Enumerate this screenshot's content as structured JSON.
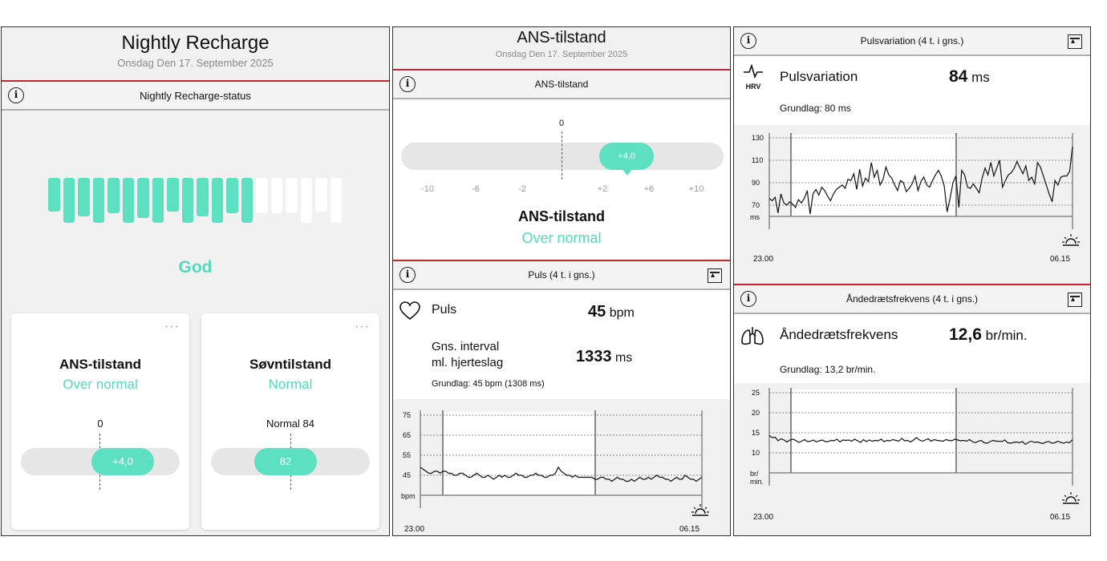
{
  "panel1": {
    "title": "Nightly Recharge",
    "date": "Onsdag Den 17. September 2025",
    "section_title": "Nightly Recharge-status",
    "status_bars_total": 20,
    "status_bars_filled": 14,
    "status_label": "God",
    "ans_card": {
      "title": "ANS-tilstand",
      "status": "Over normal",
      "ref_label": "0",
      "value": "+4,0",
      "more": "···"
    },
    "sleep_card": {
      "title": "Søvntilstand",
      "status": "Normal",
      "ref_label": "Normal 84",
      "value": "82",
      "more": "···"
    }
  },
  "panel2": {
    "title": "ANS-tilstand",
    "date": "Onsdag Den 17. September 2025",
    "section_title": "ANS-tilstand",
    "scale_zero": "0",
    "scale_ticks": [
      "-10",
      "-6",
      "-2",
      "+2",
      "+6",
      "+10"
    ],
    "value": "+4,0",
    "value_numeric": 4.0,
    "state_label": "ANS-tilstand",
    "state_value": "Over normal",
    "puls_section_title": "Puls (4 t. i gns.)",
    "puls_label": "Puls",
    "puls_value": "45",
    "puls_unit": "bpm",
    "interval_label_1": "Gns. interval",
    "interval_label_2": "ml. hjerteslag",
    "interval_value": "1333",
    "interval_unit": "ms",
    "baseline": "Grundlag: 45 bpm (1308 ms)",
    "time_start": "23.00",
    "time_end": "06.15"
  },
  "panel3": {
    "hrv_section_title": "Pulsvariation (4 t. i gns.)",
    "hrv_icon_text": "HRV",
    "hrv_label": "Pulsvariation",
    "hrv_value": "84",
    "hrv_unit": "ms",
    "hrv_baseline": "Grundlag: 80 ms",
    "resp_section_title": "Åndedrætsfrekvens (4 t. i gns.)",
    "resp_label": "Åndedrætsfrekvens",
    "resp_value": "12,6",
    "resp_unit": "br/min.",
    "resp_baseline": "Grundlag: 13,2 br/min.",
    "time_start": "23.00",
    "time_end": "06.15"
  },
  "colors": {
    "accent": "#53d9bb",
    "pill": "#5de0c2",
    "divider": "#c0282e"
  },
  "chart_data": [
    {
      "type": "line",
      "title": "Puls (4 t. i gns.)",
      "ylabel": "bpm",
      "ylim": [
        35,
        75
      ],
      "yticks": [
        "75",
        "65",
        "55",
        "45"
      ],
      "x_labels": [
        "23.00",
        "06.15"
      ],
      "values": [
        49,
        48,
        47,
        46,
        46,
        47,
        47,
        46,
        47,
        47,
        46,
        46,
        45,
        45,
        46,
        46,
        45,
        44,
        44,
        45,
        46,
        45,
        44,
        44,
        45,
        44,
        43,
        44,
        45,
        44,
        45,
        44,
        44,
        45,
        46,
        45,
        45,
        44,
        44,
        45,
        45,
        46,
        45,
        45,
        44,
        44,
        45,
        45,
        46,
        49,
        47,
        46,
        45,
        45,
        44,
        45,
        44,
        44,
        44,
        44,
        44,
        44,
        43,
        43,
        44,
        44,
        43,
        43,
        42,
        43,
        44,
        43,
        43,
        42,
        42,
        43,
        42,
        43,
        44,
        43,
        43,
        44,
        43,
        44,
        45,
        44,
        44,
        43,
        43,
        42,
        43,
        44,
        43,
        43,
        45,
        44,
        43,
        43,
        42,
        43,
        44
      ]
    },
    {
      "type": "line",
      "title": "Pulsvariation (4 t. i gns.)",
      "ylabel": "ms",
      "ylim": [
        60,
        130
      ],
      "yticks": [
        "130",
        "110",
        "90",
        "70"
      ],
      "x_labels": [
        "23.00",
        "06.15"
      ],
      "values": [
        76,
        74,
        77,
        63,
        80,
        72,
        70,
        73,
        71,
        68,
        75,
        72,
        76,
        83,
        62,
        80,
        84,
        79,
        86,
        83,
        78,
        74,
        80,
        84,
        86,
        88,
        85,
        93,
        92,
        98,
        84,
        102,
        87,
        94,
        91,
        108,
        95,
        101,
        88,
        93,
        104,
        97,
        94,
        88,
        83,
        92,
        90,
        82,
        85,
        89,
        96,
        83,
        91,
        95,
        88,
        86,
        92,
        97,
        101,
        96,
        87,
        64,
        76,
        90,
        96,
        68,
        101,
        97,
        86,
        85,
        89,
        85,
        81,
        94,
        103,
        97,
        108,
        96,
        103,
        110,
        86,
        92,
        97,
        99,
        103,
        109,
        103,
        98,
        105,
        92,
        95,
        89,
        108,
        104,
        96,
        88,
        80,
        73,
        92,
        88,
        95,
        96,
        96,
        100,
        122
      ]
    },
    {
      "type": "line",
      "title": "Åndedrætsfrekvens (4 t. i gns.)",
      "ylabel": "br/ min.",
      "ylim": [
        5,
        25
      ],
      "yticks": [
        "25",
        "20",
        "15",
        "10"
      ],
      "x_labels": [
        "23.00",
        "06.15"
      ],
      "values": [
        14.3,
        13.8,
        13.9,
        13.0,
        13.5,
        13.2,
        12.7,
        13.2,
        13.4,
        13.1,
        12.6,
        12.9,
        13.3,
        12.8,
        12.9,
        13.2,
        12.7,
        13.0,
        13.2,
        12.8,
        12.8,
        13.1,
        13.0,
        13.4,
        12.7,
        13.2,
        13.1,
        13.2,
        12.9,
        13.4,
        13.0,
        12.6,
        13.3,
        12.8,
        13.2,
        12.9,
        13.1,
        13.0,
        13.4,
        12.8,
        13.1,
        13.0,
        13.3,
        13.1,
        12.9,
        13.6,
        13.0,
        13.1,
        12.7,
        13.2,
        13.8,
        13.2,
        12.9,
        13.2,
        13.5,
        12.9,
        13.3,
        13.1,
        13.0,
        12.9,
        13.3,
        13.1,
        13.0,
        13.4,
        13.2,
        13.0,
        13.1,
        12.9,
        13.3,
        12.8,
        12.5,
        12.9,
        13.1,
        12.5,
        12.4,
        12.8,
        13.1,
        12.9,
        12.9,
        12.8,
        13.2,
        12.5,
        12.4,
        12.6,
        12.7,
        12.5,
        12.8,
        12.1,
        12.6,
        12.9,
        12.6,
        12.7,
        12.5,
        12.3,
        12.7,
        12.8,
        12.4,
        12.5,
        12.9,
        12.6,
        12.4,
        12.7,
        12.5,
        13.3
      ]
    }
  ]
}
